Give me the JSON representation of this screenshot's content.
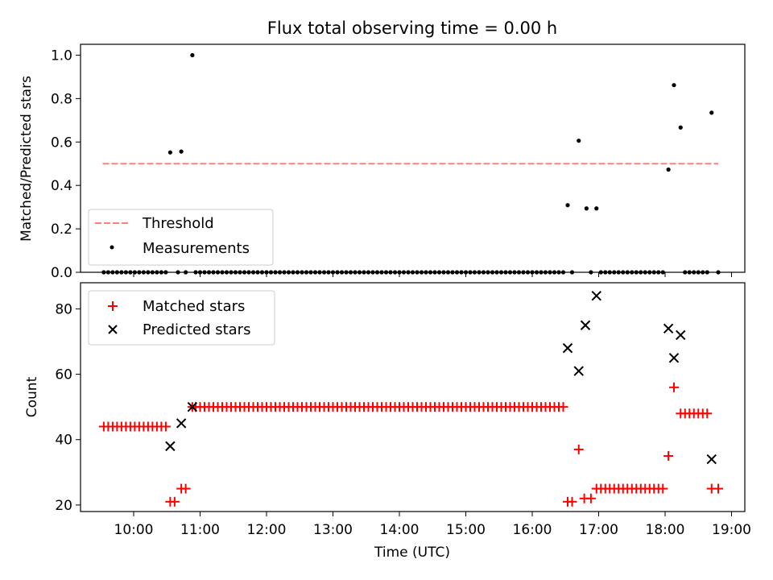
{
  "chart_data": [
    {
      "type": "scatter",
      "title": "Flux total observing time = 0.00 h",
      "xlabel": "",
      "ylabel": "Matched/Predicted stars",
      "xlim": [
        "09:12",
        "19:12"
      ],
      "ylim": [
        0,
        1.05
      ],
      "yticks": [
        "0.0",
        "0.2",
        "0.4",
        "0.6",
        "0.8",
        "1.0"
      ],
      "legend": "lower-left",
      "legend_labels": {
        "threshold": "Threshold",
        "measurements": "Measurements"
      },
      "threshold": {
        "y": 0.5,
        "x": [
          "09:32",
          "18:48"
        ],
        "color": "#ff7f7f",
        "style": "dashed"
      },
      "measurements": [
        [
          "09:33",
          0
        ],
        [
          "09:37",
          0
        ],
        [
          "09:41",
          0
        ],
        [
          "09:45",
          0
        ],
        [
          "09:49",
          0
        ],
        [
          "09:53",
          0
        ],
        [
          "09:57",
          0
        ],
        [
          "10:01",
          0
        ],
        [
          "10:05",
          0
        ],
        [
          "10:09",
          0
        ],
        [
          "10:13",
          0
        ],
        [
          "10:17",
          0
        ],
        [
          "10:21",
          0
        ],
        [
          "10:25",
          0
        ],
        [
          "10:29",
          0
        ],
        [
          "10:33",
          0.552
        ],
        [
          "10:40",
          0
        ],
        [
          "10:43",
          0.556
        ],
        [
          "10:47",
          0
        ],
        [
          "10:53",
          1.0
        ],
        [
          "10:56",
          0
        ],
        [
          "11:00",
          0
        ],
        [
          "11:04",
          0
        ],
        [
          "11:08",
          0
        ],
        [
          "11:12",
          0
        ],
        [
          "11:16",
          0
        ],
        [
          "11:20",
          0
        ],
        [
          "11:24",
          0
        ],
        [
          "11:28",
          0
        ],
        [
          "11:32",
          0
        ],
        [
          "11:36",
          0
        ],
        [
          "11:40",
          0
        ],
        [
          "11:44",
          0
        ],
        [
          "11:48",
          0
        ],
        [
          "11:52",
          0
        ],
        [
          "11:56",
          0
        ],
        [
          "12:00",
          0
        ],
        [
          "12:04",
          0
        ],
        [
          "12:08",
          0
        ],
        [
          "12:12",
          0
        ],
        [
          "12:16",
          0
        ],
        [
          "12:20",
          0
        ],
        [
          "12:24",
          0
        ],
        [
          "12:28",
          0
        ],
        [
          "12:32",
          0
        ],
        [
          "12:36",
          0
        ],
        [
          "12:40",
          0
        ],
        [
          "12:44",
          0
        ],
        [
          "12:48",
          0
        ],
        [
          "12:52",
          0
        ],
        [
          "12:56",
          0
        ],
        [
          "13:00",
          0
        ],
        [
          "13:04",
          0
        ],
        [
          "13:08",
          0
        ],
        [
          "13:12",
          0
        ],
        [
          "13:16",
          0
        ],
        [
          "13:20",
          0
        ],
        [
          "13:24",
          0
        ],
        [
          "13:28",
          0
        ],
        [
          "13:32",
          0
        ],
        [
          "13:36",
          0
        ],
        [
          "13:40",
          0
        ],
        [
          "13:44",
          0
        ],
        [
          "13:48",
          0
        ],
        [
          "13:52",
          0
        ],
        [
          "13:56",
          0
        ],
        [
          "14:00",
          0
        ],
        [
          "14:04",
          0
        ],
        [
          "14:08",
          0
        ],
        [
          "14:12",
          0
        ],
        [
          "14:16",
          0
        ],
        [
          "14:20",
          0
        ],
        [
          "14:24",
          0
        ],
        [
          "14:28",
          0
        ],
        [
          "14:32",
          0
        ],
        [
          "14:36",
          0
        ],
        [
          "14:40",
          0
        ],
        [
          "14:44",
          0
        ],
        [
          "14:48",
          0
        ],
        [
          "14:52",
          0
        ],
        [
          "14:56",
          0
        ],
        [
          "15:00",
          0
        ],
        [
          "15:04",
          0
        ],
        [
          "15:08",
          0
        ],
        [
          "15:12",
          0
        ],
        [
          "15:16",
          0
        ],
        [
          "15:20",
          0
        ],
        [
          "15:24",
          0
        ],
        [
          "15:28",
          0
        ],
        [
          "15:32",
          0
        ],
        [
          "15:36",
          0
        ],
        [
          "15:40",
          0
        ],
        [
          "15:44",
          0
        ],
        [
          "15:48",
          0
        ],
        [
          "15:52",
          0
        ],
        [
          "15:56",
          0
        ],
        [
          "16:00",
          0
        ],
        [
          "16:04",
          0
        ],
        [
          "16:08",
          0
        ],
        [
          "16:12",
          0
        ],
        [
          "16:16",
          0
        ],
        [
          "16:20",
          0
        ],
        [
          "16:24",
          0
        ],
        [
          "16:28",
          0
        ],
        [
          "16:32",
          0.309
        ],
        [
          "16:36",
          0
        ],
        [
          "16:42",
          0.606
        ],
        [
          "16:49",
          0.294
        ],
        [
          "16:53",
          0
        ],
        [
          "16:58",
          0.294
        ],
        [
          "17:02",
          0
        ],
        [
          "17:06",
          0
        ],
        [
          "17:10",
          0
        ],
        [
          "17:14",
          0
        ],
        [
          "17:18",
          0
        ],
        [
          "17:22",
          0
        ],
        [
          "17:26",
          0
        ],
        [
          "17:30",
          0
        ],
        [
          "17:34",
          0
        ],
        [
          "17:38",
          0
        ],
        [
          "17:42",
          0
        ],
        [
          "17:46",
          0
        ],
        [
          "17:50",
          0
        ],
        [
          "17:54",
          0
        ],
        [
          "17:58",
          0
        ],
        [
          "18:03",
          0.473
        ],
        [
          "18:08",
          0.862
        ],
        [
          "18:14",
          0.667
        ],
        [
          "18:18",
          0
        ],
        [
          "18:22",
          0
        ],
        [
          "18:26",
          0
        ],
        [
          "18:30",
          0
        ],
        [
          "18:34",
          0
        ],
        [
          "18:38",
          0
        ],
        [
          "18:42",
          0.735
        ],
        [
          "18:48",
          0
        ]
      ]
    },
    {
      "type": "scatter",
      "title": "",
      "xlabel": "Time (UTC)",
      "ylabel": "Count",
      "xlim": [
        "09:12",
        "19:12"
      ],
      "ylim": [
        18,
        88
      ],
      "yticks": [
        "20",
        "40",
        "60",
        "80"
      ],
      "xticks": [
        "10:00",
        "11:00",
        "12:00",
        "13:00",
        "14:00",
        "15:00",
        "16:00",
        "17:00",
        "18:00",
        "19:00"
      ],
      "legend": "upper-left",
      "series": [
        {
          "name": "Matched stars",
          "marker": "+",
          "color": "#ff0000",
          "points": [
            [
              "09:33",
              44
            ],
            [
              "09:37",
              44
            ],
            [
              "09:41",
              44
            ],
            [
              "09:45",
              44
            ],
            [
              "09:49",
              44
            ],
            [
              "09:53",
              44
            ],
            [
              "09:57",
              44
            ],
            [
              "10:01",
              44
            ],
            [
              "10:05",
              44
            ],
            [
              "10:09",
              44
            ],
            [
              "10:13",
              44
            ],
            [
              "10:17",
              44
            ],
            [
              "10:21",
              44
            ],
            [
              "10:25",
              44
            ],
            [
              "10:29",
              44
            ],
            [
              "10:33",
              21
            ],
            [
              "10:37",
              21
            ],
            [
              "10:43",
              25
            ],
            [
              "10:47",
              25
            ],
            [
              "10:53",
              50
            ],
            [
              "10:56",
              50
            ],
            [
              "11:00",
              50
            ],
            [
              "11:04",
              50
            ],
            [
              "11:08",
              50
            ],
            [
              "11:12",
              50
            ],
            [
              "11:16",
              50
            ],
            [
              "11:20",
              50
            ],
            [
              "11:24",
              50
            ],
            [
              "11:28",
              50
            ],
            [
              "11:32",
              50
            ],
            [
              "11:36",
              50
            ],
            [
              "11:40",
              50
            ],
            [
              "11:44",
              50
            ],
            [
              "11:48",
              50
            ],
            [
              "11:52",
              50
            ],
            [
              "11:56",
              50
            ],
            [
              "12:00",
              50
            ],
            [
              "12:04",
              50
            ],
            [
              "12:08",
              50
            ],
            [
              "12:12",
              50
            ],
            [
              "12:16",
              50
            ],
            [
              "12:20",
              50
            ],
            [
              "12:24",
              50
            ],
            [
              "12:28",
              50
            ],
            [
              "12:32",
              50
            ],
            [
              "12:36",
              50
            ],
            [
              "12:40",
              50
            ],
            [
              "12:44",
              50
            ],
            [
              "12:48",
              50
            ],
            [
              "12:52",
              50
            ],
            [
              "12:56",
              50
            ],
            [
              "13:00",
              50
            ],
            [
              "13:04",
              50
            ],
            [
              "13:08",
              50
            ],
            [
              "13:12",
              50
            ],
            [
              "13:16",
              50
            ],
            [
              "13:20",
              50
            ],
            [
              "13:24",
              50
            ],
            [
              "13:28",
              50
            ],
            [
              "13:32",
              50
            ],
            [
              "13:36",
              50
            ],
            [
              "13:40",
              50
            ],
            [
              "13:44",
              50
            ],
            [
              "13:48",
              50
            ],
            [
              "13:52",
              50
            ],
            [
              "13:56",
              50
            ],
            [
              "14:00",
              50
            ],
            [
              "14:04",
              50
            ],
            [
              "14:08",
              50
            ],
            [
              "14:12",
              50
            ],
            [
              "14:16",
              50
            ],
            [
              "14:20",
              50
            ],
            [
              "14:24",
              50
            ],
            [
              "14:28",
              50
            ],
            [
              "14:32",
              50
            ],
            [
              "14:36",
              50
            ],
            [
              "14:40",
              50
            ],
            [
              "14:44",
              50
            ],
            [
              "14:48",
              50
            ],
            [
              "14:52",
              50
            ],
            [
              "14:56",
              50
            ],
            [
              "15:00",
              50
            ],
            [
              "15:04",
              50
            ],
            [
              "15:08",
              50
            ],
            [
              "15:12",
              50
            ],
            [
              "15:16",
              50
            ],
            [
              "15:20",
              50
            ],
            [
              "15:24",
              50
            ],
            [
              "15:28",
              50
            ],
            [
              "15:32",
              50
            ],
            [
              "15:36",
              50
            ],
            [
              "15:40",
              50
            ],
            [
              "15:44",
              50
            ],
            [
              "15:48",
              50
            ],
            [
              "15:52",
              50
            ],
            [
              "15:56",
              50
            ],
            [
              "16:00",
              50
            ],
            [
              "16:04",
              50
            ],
            [
              "16:08",
              50
            ],
            [
              "16:12",
              50
            ],
            [
              "16:16",
              50
            ],
            [
              "16:20",
              50
            ],
            [
              "16:24",
              50
            ],
            [
              "16:28",
              50
            ],
            [
              "16:32",
              21
            ],
            [
              "16:36",
              21
            ],
            [
              "16:42",
              37
            ],
            [
              "16:47",
              22
            ],
            [
              "16:53",
              22
            ],
            [
              "16:58",
              25
            ],
            [
              "17:02",
              25
            ],
            [
              "17:06",
              25
            ],
            [
              "17:10",
              25
            ],
            [
              "17:14",
              25
            ],
            [
              "17:18",
              25
            ],
            [
              "17:22",
              25
            ],
            [
              "17:26",
              25
            ],
            [
              "17:30",
              25
            ],
            [
              "17:34",
              25
            ],
            [
              "17:38",
              25
            ],
            [
              "17:42",
              25
            ],
            [
              "17:46",
              25
            ],
            [
              "17:50",
              25
            ],
            [
              "17:54",
              25
            ],
            [
              "17:58",
              25
            ],
            [
              "18:03",
              35
            ],
            [
              "18:08",
              56
            ],
            [
              "18:14",
              48
            ],
            [
              "18:18",
              48
            ],
            [
              "18:22",
              48
            ],
            [
              "18:26",
              48
            ],
            [
              "18:30",
              48
            ],
            [
              "18:34",
              48
            ],
            [
              "18:38",
              48
            ],
            [
              "18:42",
              25
            ],
            [
              "18:48",
              25
            ]
          ]
        },
        {
          "name": "Predicted stars",
          "marker": "x",
          "color": "#000000",
          "points": [
            [
              "10:33",
              38
            ],
            [
              "10:43",
              45
            ],
            [
              "10:53",
              50
            ],
            [
              "16:32",
              68
            ],
            [
              "16:42",
              61
            ],
            [
              "16:48",
              75
            ],
            [
              "16:58",
              84
            ],
            [
              "18:03",
              74
            ],
            [
              "18:08",
              65
            ],
            [
              "18:14",
              72
            ],
            [
              "18:42",
              34
            ]
          ]
        }
      ]
    }
  ]
}
